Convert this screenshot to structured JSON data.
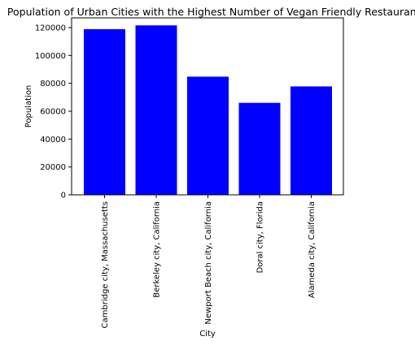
{
  "chart_data": {
    "type": "bar",
    "title": "Population of Urban Cities with the Highest Number of Vegan Friendly Restaurants",
    "xlabel": "City",
    "ylabel": "Population",
    "categories": [
      "Cambridge city, Massachusetts",
      "Berkeley city, California",
      "Newport Beach city, California",
      "Doral city, Florida",
      "Alameda city, California"
    ],
    "values": [
      118900,
      121600,
      84800,
      66000,
      77800
    ],
    "ylim": [
      0,
      127000
    ],
    "yticks": [
      0,
      20000,
      40000,
      60000,
      80000,
      100000,
      120000
    ],
    "bar_color": "#0000ff",
    "grid": false
  }
}
